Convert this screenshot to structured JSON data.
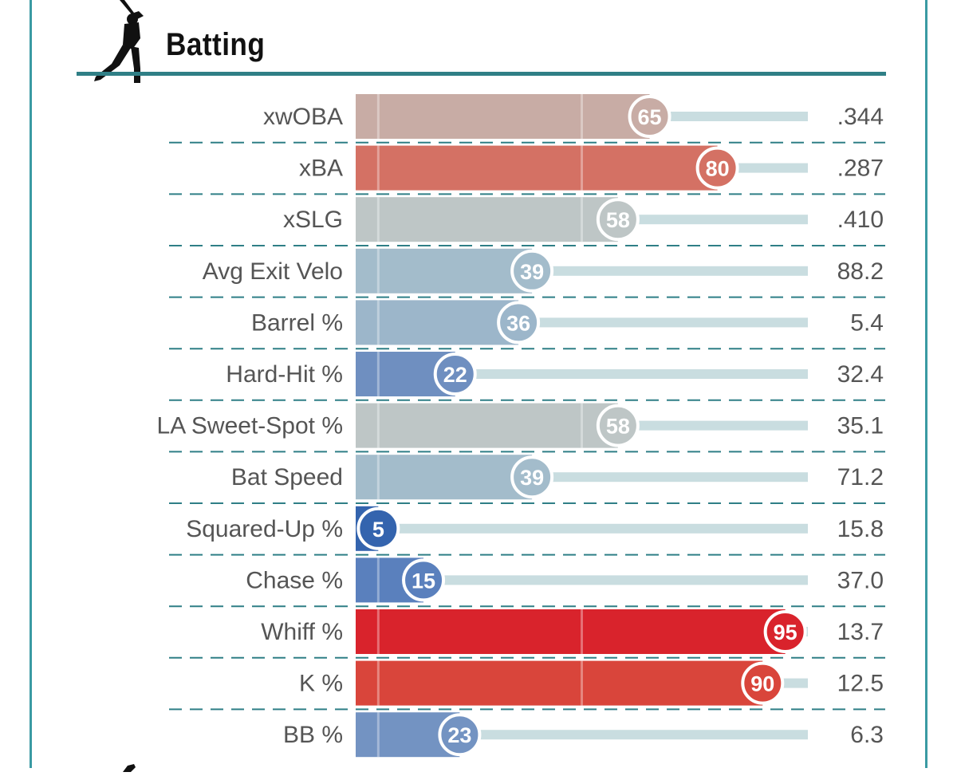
{
  "section": {
    "title": "Batting",
    "icon": "batter-silhouette-icon"
  },
  "colors": {
    "frame": "#3a9aa3",
    "header_rule": "#2f7f86",
    "divider": "#2f7f86",
    "track": "#c9dde0",
    "label_text": "#555555"
  },
  "chart_data": {
    "type": "bar",
    "orientation": "horizontal",
    "xlim": [
      0,
      100
    ],
    "categories": [
      "xwOBA",
      "xBA",
      "xSLG",
      "Avg Exit Velo",
      "Barrel %",
      "Hard-Hit %",
      "LA Sweet-Spot %",
      "Bat Speed",
      "Squared-Up %",
      "Chase %",
      "Whiff %",
      "K %",
      "BB %"
    ],
    "percentiles": [
      65,
      80,
      58,
      39,
      36,
      22,
      58,
      39,
      5,
      15,
      95,
      90,
      23
    ],
    "stat_values": [
      ".344",
      ".287",
      ".410",
      "88.2",
      "5.4",
      "32.4",
      "35.1",
      "71.2",
      "15.8",
      "37.0",
      "13.7",
      "12.5",
      "6.3"
    ],
    "bar_colors": [
      "#c8aca5",
      "#d47164",
      "#bec6c6",
      "#a3bccb",
      "#9cb6ca",
      "#6f8fc0",
      "#bec6c6",
      "#a3bccb",
      "#3464ae",
      "#5a80bd",
      "#d9232c",
      "#d9453b",
      "#7393c2"
    ]
  }
}
